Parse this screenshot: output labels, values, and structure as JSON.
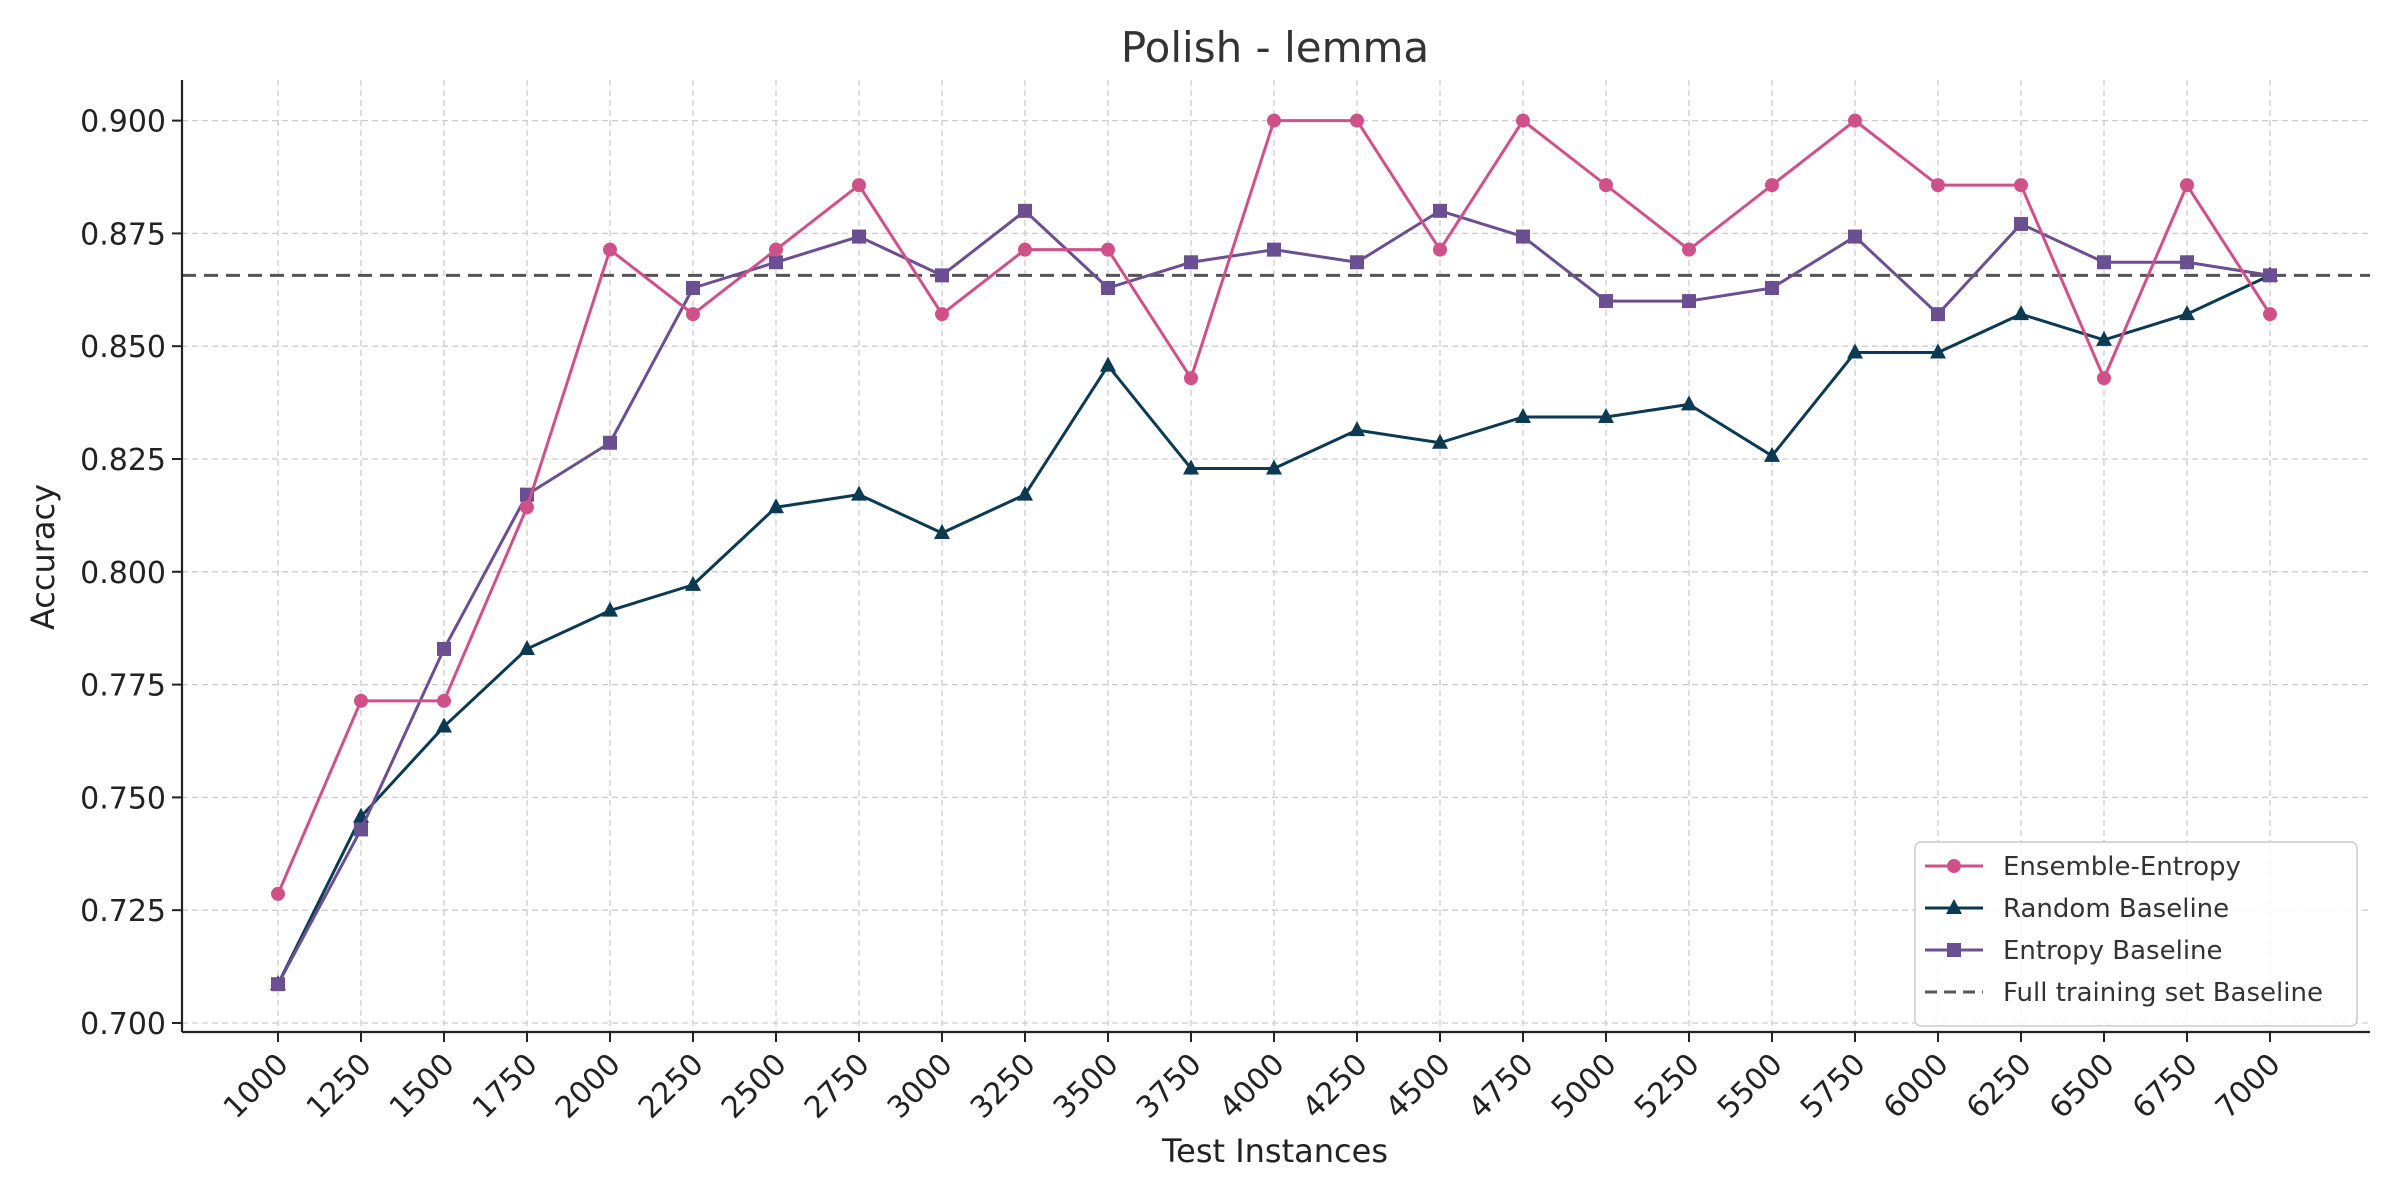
{
  "chart_data": {
    "type": "line",
    "title": "Polish - lemma",
    "xlabel": "Test Instances",
    "ylabel": "Accuracy",
    "x": [
      1000,
      1250,
      1500,
      1750,
      2000,
      2250,
      2500,
      2750,
      3000,
      3250,
      3500,
      3750,
      4000,
      4250,
      4500,
      4750,
      5000,
      5250,
      5500,
      5750,
      6000,
      6250,
      6500,
      6750,
      7000
    ],
    "xticks": [
      "1000",
      "1250",
      "1500",
      "1750",
      "2000",
      "2250",
      "2500",
      "2750",
      "3000",
      "3250",
      "3500",
      "3750",
      "4000",
      "4250",
      "4500",
      "4750",
      "5000",
      "5250",
      "5500",
      "5750",
      "6000",
      "6250",
      "6500",
      "6750",
      "7000"
    ],
    "ylim": [
      0.698,
      0.909
    ],
    "yticks": [
      "0.700",
      "0.725",
      "0.750",
      "0.775",
      "0.800",
      "0.825",
      "0.850",
      "0.875",
      "0.900"
    ],
    "grid": true,
    "legend_position": "bottom-right",
    "series": [
      {
        "name": "Ensemble-Entropy",
        "color": "#d0508a",
        "marker": "circle",
        "values": [
          0.7286,
          0.7714,
          0.7714,
          0.8143,
          0.8714,
          0.8571,
          0.8714,
          0.8857,
          0.8571,
          0.8714,
          0.8714,
          0.8429,
          0.9,
          0.9,
          0.8714,
          0.9,
          0.8857,
          0.8714,
          0.8857,
          0.9,
          0.8857,
          0.8857,
          0.8429,
          0.8857,
          0.8571
        ]
      },
      {
        "name": "Random Baseline",
        "color": "#0b3a52",
        "marker": "triangle",
        "values": [
          0.7086,
          0.7457,
          0.7657,
          0.7829,
          0.7914,
          0.7971,
          0.8143,
          0.8171,
          0.8086,
          0.8171,
          0.8457,
          0.8229,
          0.8229,
          0.8314,
          0.8286,
          0.8343,
          0.8343,
          0.8371,
          0.8257,
          0.8486,
          0.8486,
          0.8571,
          0.8514,
          0.8571,
          0.8657
        ]
      },
      {
        "name": "Entropy Baseline",
        "color": "#6a4f91",
        "marker": "square",
        "values": [
          0.7086,
          0.7429,
          0.7829,
          0.8171,
          0.8286,
          0.8629,
          0.8686,
          0.8743,
          0.8657,
          0.88,
          0.8629,
          0.8686,
          0.8714,
          0.8686,
          0.88,
          0.8743,
          0.86,
          0.86,
          0.8629,
          0.8743,
          0.8571,
          0.8771,
          0.8686,
          0.8686,
          0.8657
        ]
      }
    ],
    "reference_lines": [
      {
        "name": "Full training set Baseline",
        "color": "#555555",
        "style": "dashed",
        "value": 0.8657
      }
    ]
  }
}
